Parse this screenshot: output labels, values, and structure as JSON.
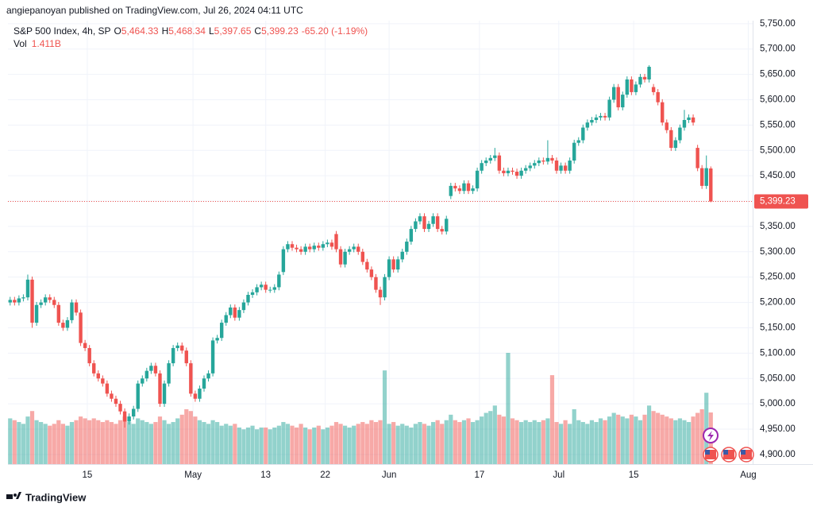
{
  "chart_data": {
    "type": "candlestick",
    "published": "angiepanoyan published on TradingView.com, Jul 26, 2024 04:11 UTC",
    "legend": {
      "name": "S&P 500 Index, 4h, SP",
      "fields": [
        {
          "key": "O",
          "value": "5,464.33"
        },
        {
          "key": "H",
          "value": "5,468.34"
        },
        {
          "key": "L",
          "value": "5,397.65"
        },
        {
          "key": "C",
          "value": "5,399.23"
        }
      ],
      "change": "-65.20 (-1.19%)",
      "volume_name": "Vol",
      "volume_value": "1.411B"
    },
    "last_price_label": "5,399.23",
    "brand": "TradingView",
    "up_color": "#26a69a",
    "down_color": "#ef5350",
    "grid": true,
    "xlim": [
      -0.5,
      168.5
    ],
    "xticks": [
      {
        "value": 17.5,
        "label": "15"
      },
      {
        "value": 41.5,
        "label": "May"
      },
      {
        "value": 58,
        "label": "13"
      },
      {
        "value": 71.5,
        "label": "22"
      },
      {
        "value": 86,
        "label": "Jun"
      },
      {
        "value": 106.5,
        "label": "17"
      },
      {
        "value": 124.5,
        "label": "Jul"
      },
      {
        "value": 141.5,
        "label": "15"
      },
      {
        "value": 167.5,
        "label": "Aug"
      }
    ],
    "ylim": [
      4881,
      5756
    ],
    "yticks": [
      {
        "value": 4900,
        "label": "4,900.00"
      },
      {
        "value": 4950,
        "label": "4,950.00"
      },
      {
        "value": 5000,
        "label": "5,000.00"
      },
      {
        "value": 5050,
        "label": "5,050.00"
      },
      {
        "value": 5100,
        "label": "5,100.00"
      },
      {
        "value": 5150,
        "label": "5,150.00"
      },
      {
        "value": 5200,
        "label": "5,200.00"
      },
      {
        "value": 5250,
        "label": "5,250.00"
      },
      {
        "value": 5300,
        "label": "5,300.00"
      },
      {
        "value": 5350,
        "label": "5,350.00"
      },
      {
        "value": 5400,
        "label": "5,400.00"
      },
      {
        "value": 5450,
        "label": "5,450.00"
      },
      {
        "value": 5500,
        "label": "5,500.00"
      },
      {
        "value": 5550,
        "label": "5,550.00"
      },
      {
        "value": 5600,
        "label": "5,600.00"
      },
      {
        "value": 5650,
        "label": "5,650.00"
      },
      {
        "value": 5700,
        "label": "5,700.00"
      },
      {
        "value": 5750,
        "label": "5,750.00"
      }
    ],
    "open": [
      5200,
      5205,
      5200,
      5208,
      5210,
      5245,
      5160,
      5195,
      5200,
      5210,
      5205,
      5195,
      5160,
      5150,
      5165,
      5200,
      5180,
      5120,
      5110,
      5080,
      5060,
      5050,
      5040,
      5020,
      5010,
      5000,
      4985,
      4965,
      4975,
      4990,
      5040,
      5050,
      5065,
      5075,
      5060,
      5000,
      5040,
      5080,
      5110,
      5115,
      5105,
      5080,
      5020,
      5010,
      5030,
      5050,
      5060,
      5125,
      5130,
      5160,
      5175,
      5190,
      5170,
      5185,
      5200,
      5215,
      5220,
      5230,
      5235,
      5225,
      5225,
      5230,
      5260,
      5305,
      5315,
      5308,
      5305,
      5300,
      5310,
      5305,
      5312,
      5308,
      5315,
      5318,
      5335,
      5305,
      5275,
      5300,
      5305,
      5310,
      5300,
      5280,
      5265,
      5250,
      5225,
      5210,
      5250,
      5285,
      5265,
      5285,
      5300,
      5320,
      5345,
      5360,
      5370,
      5345,
      5355,
      5370,
      5345,
      5340,
      5410,
      5430,
      5425,
      5420,
      5435,
      5420,
      5425,
      5460,
      5475,
      5480,
      5485,
      5490,
      5460,
      5455,
      5460,
      5458,
      5450,
      5460,
      5465,
      5470,
      5475,
      5480,
      5478,
      5485,
      5480,
      5460,
      5470,
      5460,
      5480,
      5515,
      5520,
      5545,
      5555,
      5560,
      5565,
      5568,
      5565,
      5600,
      5625,
      5585,
      5610,
      5640,
      5615,
      5630,
      5645,
      5640,
      5625,
      5615,
      5595,
      5555,
      5540,
      5505,
      5520,
      5545,
      5560,
      5565,
      5505,
      5465,
      5430,
      5464.33
    ],
    "high": [
      5211,
      5211,
      5214,
      5216,
      5255,
      5251,
      5201,
      5206,
      5216,
      5216,
      5211,
      5201,
      5166,
      5171,
      5206,
      5206,
      5186,
      5126,
      5116,
      5086,
      5066,
      5056,
      5046,
      5026,
      5016,
      5006,
      4991,
      4981,
      4996,
      5046,
      5056,
      5071,
      5081,
      5081,
      5066,
      5046,
      5086,
      5116,
      5121,
      5121,
      5111,
      5086,
      5026,
      5036,
      5056,
      5066,
      5131,
      5136,
      5166,
      5181,
      5196,
      5196,
      5191,
      5206,
      5221,
      5226,
      5236,
      5241,
      5241,
      5231,
      5236,
      5261,
      5311,
      5321,
      5321,
      5314,
      5311,
      5316,
      5316,
      5318,
      5318,
      5321,
      5324,
      5324,
      5341,
      5311,
      5306,
      5311,
      5316,
      5316,
      5306,
      5286,
      5271,
      5256,
      5231,
      5256,
      5291,
      5291,
      5291,
      5306,
      5326,
      5351,
      5366,
      5376,
      5376,
      5361,
      5376,
      5376,
      5351,
      5371,
      5436,
      5436,
      5431,
      5441,
      5441,
      5431,
      5466,
      5481,
      5486,
      5491,
      5505,
      5496,
      5466,
      5466,
      5466,
      5464,
      5466,
      5471,
      5476,
      5481,
      5486,
      5486,
      5520,
      5491,
      5486,
      5476,
      5476,
      5486,
      5521,
      5526,
      5551,
      5561,
      5566,
      5571,
      5574,
      5574,
      5606,
      5631,
      5631,
      5616,
      5646,
      5646,
      5636,
      5651,
      5651,
      5668,
      5631,
      5621,
      5601,
      5561,
      5546,
      5526,
      5551,
      5580,
      5571,
      5571,
      5511,
      5471,
      5490,
      5468.34
    ],
    "low": [
      5194,
      5194,
      5194,
      5202,
      5204,
      5150,
      5154,
      5189,
      5194,
      5199,
      5189,
      5154,
      5144,
      5144,
      5159,
      5174,
      5114,
      5104,
      5074,
      5054,
      5044,
      5034,
      5014,
      5004,
      4994,
      4979,
      4953,
      4959,
      4969,
      4984,
      5034,
      5044,
      5059,
      5054,
      4994,
      4994,
      5034,
      5074,
      5104,
      5099,
      5074,
      5014,
      5004,
      5004,
      5024,
      5044,
      5054,
      5119,
      5124,
      5154,
      5169,
      5164,
      5164,
      5179,
      5194,
      5209,
      5214,
      5224,
      5219,
      5219,
      5219,
      5224,
      5254,
      5299,
      5302,
      5299,
      5294,
      5294,
      5299,
      5299,
      5302,
      5302,
      5309,
      5304,
      5299,
      5269,
      5269,
      5294,
      5299,
      5294,
      5274,
      5259,
      5244,
      5219,
      5195,
      5204,
      5244,
      5259,
      5259,
      5279,
      5294,
      5314,
      5339,
      5354,
      5339,
      5339,
      5349,
      5339,
      5334,
      5334,
      5404,
      5419,
      5414,
      5414,
      5414,
      5414,
      5419,
      5454,
      5469,
      5474,
      5479,
      5454,
      5449,
      5449,
      5452,
      5444,
      5444,
      5454,
      5459,
      5464,
      5469,
      5472,
      5472,
      5474,
      5454,
      5454,
      5454,
      5454,
      5474,
      5509,
      5514,
      5539,
      5549,
      5554,
      5559,
      5559,
      5559,
      5594,
      5579,
      5579,
      5604,
      5609,
      5609,
      5624,
      5634,
      5634,
      5609,
      5589,
      5549,
      5534,
      5499,
      5499,
      5514,
      5539,
      5554,
      5549,
      5459,
      5424,
      5424,
      5397.65
    ],
    "close": [
      5205,
      5200,
      5208,
      5210,
      5245,
      5160,
      5195,
      5200,
      5210,
      5205,
      5195,
      5160,
      5150,
      5165,
      5200,
      5180,
      5120,
      5110,
      5080,
      5060,
      5050,
      5040,
      5020,
      5010,
      5000,
      4985,
      4965,
      4975,
      4990,
      5040,
      5050,
      5065,
      5075,
      5060,
      5000,
      5040,
      5080,
      5110,
      5115,
      5105,
      5080,
      5020,
      5010,
      5030,
      5050,
      5060,
      5125,
      5130,
      5160,
      5175,
      5190,
      5170,
      5185,
      5200,
      5215,
      5220,
      5230,
      5235,
      5225,
      5225,
      5230,
      5255,
      5305,
      5315,
      5308,
      5305,
      5300,
      5310,
      5305,
      5312,
      5308,
      5315,
      5318,
      5310,
      5305,
      5275,
      5300,
      5305,
      5310,
      5300,
      5280,
      5265,
      5250,
      5225,
      5210,
      5250,
      5285,
      5265,
      5285,
      5300,
      5320,
      5345,
      5360,
      5370,
      5345,
      5355,
      5370,
      5345,
      5340,
      5365,
      5430,
      5425,
      5420,
      5435,
      5420,
      5425,
      5460,
      5475,
      5480,
      5485,
      5490,
      5460,
      5455,
      5460,
      5458,
      5450,
      5460,
      5465,
      5470,
      5475,
      5480,
      5478,
      5485,
      5480,
      5460,
      5470,
      5460,
      5480,
      5515,
      5520,
      5545,
      5555,
      5560,
      5565,
      5568,
      5565,
      5600,
      5625,
      5585,
      5610,
      5640,
      5615,
      5630,
      5645,
      5640,
      5665,
      5615,
      5595,
      5555,
      5540,
      5505,
      5520,
      5545,
      5560,
      5565,
      5555,
      5465,
      5430,
      5465,
      5399.23
    ],
    "volume": [
      1.25,
      1.2,
      1.15,
      1.1,
      1.3,
      1.45,
      1.2,
      1.15,
      1.1,
      1.05,
      1.1,
      1.2,
      1.1,
      1.05,
      1.15,
      1.2,
      1.3,
      1.25,
      1.2,
      1.25,
      1.2,
      1.15,
      1.2,
      1.15,
      1.1,
      1.2,
      1.3,
      1.15,
      1.1,
      1.25,
      1.2,
      1.15,
      1.1,
      1.15,
      1.3,
      1.2,
      1.1,
      1.15,
      1.25,
      1.35,
      1.5,
      1.45,
      1.3,
      1.2,
      1.15,
      1.1,
      1.2,
      1.15,
      1.05,
      1.1,
      1.05,
      1.1,
      1.0,
      0.95,
      1.0,
      1.05,
      0.95,
      1.0,
      1.0,
      0.95,
      1.0,
      1.05,
      1.15,
      1.1,
      1.05,
      1.0,
      1.1,
      1.0,
      0.95,
      1.0,
      1.05,
      0.95,
      1.0,
      1.05,
      1.15,
      1.1,
      1.05,
      1.0,
      1.05,
      1.1,
      1.15,
      1.1,
      1.2,
      1.15,
      1.2,
      2.56,
      1.1,
      1.15,
      1.05,
      1.1,
      1.05,
      1.0,
      1.1,
      1.15,
      1.1,
      1.05,
      1.15,
      1.2,
      1.1,
      1.2,
      1.35,
      1.2,
      1.15,
      1.2,
      1.25,
      1.15,
      1.2,
      1.3,
      1.4,
      1.45,
      1.6,
      1.35,
      1.3,
      3.04,
      1.25,
      1.2,
      1.15,
      1.2,
      1.15,
      1.2,
      1.15,
      1.2,
      1.25,
      2.43,
      1.15,
      1.1,
      1.2,
      1.1,
      1.5,
      1.2,
      1.15,
      1.1,
      1.2,
      1.15,
      1.25,
      1.2,
      1.3,
      1.4,
      1.35,
      1.3,
      1.25,
      1.35,
      1.3,
      1.2,
      1.35,
      1.6,
      1.45,
      1.4,
      1.35,
      1.3,
      1.25,
      1.2,
      1.25,
      1.2,
      1.15,
      1.3,
      1.4,
      1.5,
      1.95,
      1.411
    ]
  }
}
